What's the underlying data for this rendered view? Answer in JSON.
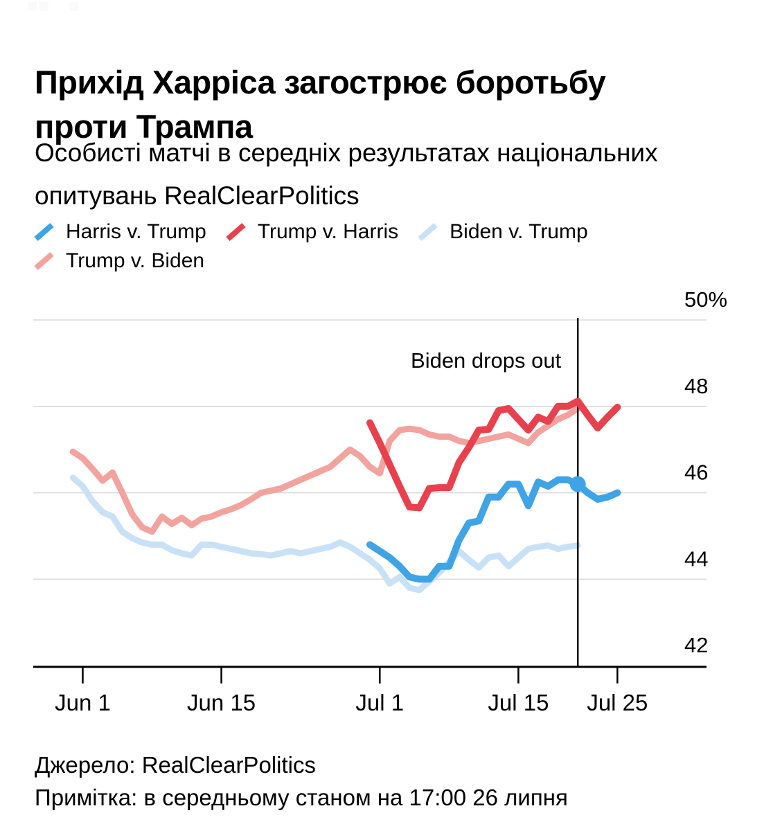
{
  "page": {
    "title": "Прихід Харріса загострює боротьбу проти Трампа",
    "subtitle": "Особисті матчі в середніх результатах національних опитувань RealClearPolitics",
    "source": "Джерело: RealClearPolitics",
    "note": "Примітка: в середньому станом на 17:00 26 липня"
  },
  "chart_data": {
    "type": "line",
    "title": "Прихід Харріса загострює боротьбу проти Трампа",
    "subtitle": "Особисті матчі в середніх результатах національних опитувань RealClearPolitics",
    "x_unit": "date (day index, day 0 = May 27)",
    "x_domain_days": [
      0,
      68
    ],
    "y_domain": [
      42,
      50
    ],
    "grid": "horizontal only",
    "legend_position": "top",
    "y_ticks": [
      {
        "label": "50%",
        "value": 50
      },
      {
        "label": "48",
        "value": 48
      },
      {
        "label": "46",
        "value": 46
      },
      {
        "label": "44",
        "value": 44
      },
      {
        "label": "42",
        "value": 42
      }
    ],
    "gridline_values": [
      50,
      48,
      46,
      44
    ],
    "x_ticks": [
      {
        "label": "Jun 1",
        "day": 5
      },
      {
        "label": "Jun 15",
        "day": 19
      },
      {
        "label": "Jul 1",
        "day": 35
      },
      {
        "label": "Jul 15",
        "day": 49
      },
      {
        "label": "Jul 25",
        "day": 59
      }
    ],
    "annotation": {
      "text": "Biden drops out",
      "day": 55,
      "date": "Jul 21"
    },
    "marker": {
      "series": "harris_v_trump",
      "day": 55,
      "date": "Jul 21",
      "value": 46.2
    },
    "legend_order": [
      "harris_v_trump",
      "trump_v_harris",
      "biden_v_trump",
      "trump_v_biden"
    ],
    "series": [
      {
        "id": "trump_v_biden",
        "name": "Trump v. Biden",
        "color": "#f2a39d",
        "width": 9,
        "layer": "back",
        "start_day": 4,
        "start_date": "May 31",
        "end_date": "Jul 21",
        "values": [
          46.95,
          46.8,
          46.55,
          46.28,
          46.47,
          46.0,
          45.5,
          45.2,
          45.1,
          45.45,
          45.28,
          45.42,
          45.25,
          45.4,
          45.45,
          45.55,
          45.62,
          45.72,
          45.85,
          46.0,
          46.05,
          46.1,
          46.2,
          46.3,
          46.4,
          46.5,
          46.6,
          46.8,
          47.0,
          46.85,
          46.6,
          46.45,
          47.2,
          47.45,
          47.48,
          47.45,
          47.35,
          47.3,
          47.3,
          47.2,
          47.15,
          47.2,
          47.25,
          47.3,
          47.35,
          47.25,
          47.15,
          47.4,
          47.55,
          47.7,
          47.8,
          47.95
        ]
      },
      {
        "id": "biden_v_trump",
        "name": "Biden v. Trump",
        "color": "#c9e1f7",
        "width": 9,
        "layer": "back",
        "start_day": 4,
        "start_date": "May 31",
        "end_date": "Jul 21",
        "values": [
          46.35,
          46.15,
          45.8,
          45.55,
          45.45,
          45.1,
          44.95,
          44.85,
          44.8,
          44.8,
          44.67,
          44.6,
          44.55,
          44.8,
          44.8,
          44.75,
          44.7,
          44.65,
          44.6,
          44.58,
          44.55,
          44.6,
          44.65,
          44.6,
          44.65,
          44.7,
          44.75,
          44.85,
          44.75,
          44.6,
          44.45,
          44.25,
          43.9,
          44.05,
          43.8,
          43.75,
          43.95,
          44.15,
          44.4,
          44.65,
          44.45,
          44.27,
          44.5,
          44.55,
          44.3,
          44.5,
          44.7,
          44.75,
          44.78,
          44.7,
          44.75,
          44.78
        ]
      },
      {
        "id": "trump_v_harris",
        "name": "Trump v. Harris",
        "color": "#e8414d",
        "width": 10,
        "layer": "front",
        "start_day": 34,
        "start_date": "Jun 30",
        "end_date": "Jul 25",
        "values": [
          47.62,
          47.15,
          46.65,
          46.15,
          45.67,
          45.65,
          46.1,
          46.12,
          46.12,
          46.7,
          47.05,
          47.45,
          47.47,
          47.9,
          47.95,
          47.7,
          47.45,
          47.75,
          47.65,
          48.0,
          48.0,
          48.12,
          47.8,
          47.5,
          47.75,
          47.98
        ]
      },
      {
        "id": "harris_v_trump",
        "name": "Harris v. Trump",
        "color": "#3fa4e6",
        "width": 10,
        "layer": "front",
        "start_day": 34,
        "start_date": "Jun 30",
        "end_date": "Jul 25",
        "values": [
          44.8,
          44.65,
          44.5,
          44.3,
          44.05,
          44.0,
          44.0,
          44.3,
          44.3,
          44.9,
          45.3,
          45.35,
          45.9,
          45.9,
          46.2,
          46.2,
          45.7,
          46.25,
          46.15,
          46.3,
          46.3,
          46.2,
          46.0,
          45.85,
          45.9,
          46.0
        ]
      }
    ]
  }
}
